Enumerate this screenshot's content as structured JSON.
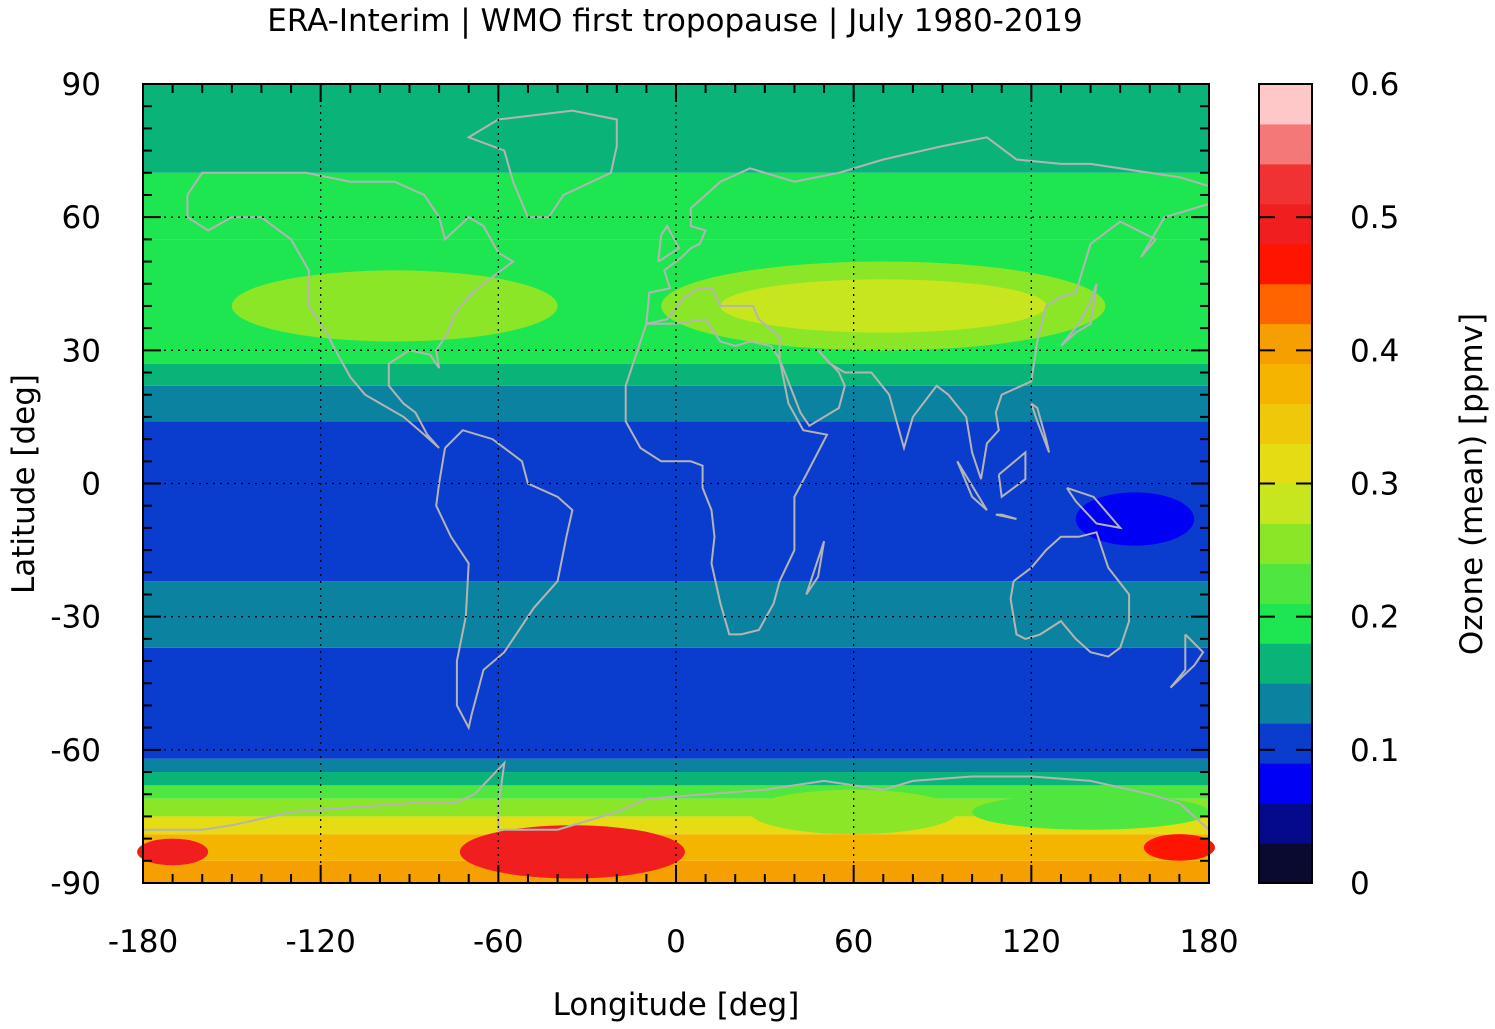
{
  "chart_data": {
    "type": "heatmap",
    "title": "ERA-Interim | WMO first tropopause | July 1980-2019",
    "xlabel": "Longitude [deg]",
    "ylabel": "Latitude [deg]",
    "xlim": [
      -180,
      180
    ],
    "ylim": [
      -90,
      90
    ],
    "x_ticks": [
      -180,
      -120,
      -60,
      0,
      60,
      120,
      180
    ],
    "y_ticks": [
      -90,
      -60,
      -30,
      0,
      30,
      60,
      90
    ],
    "x_tick_labels": [
      "-180",
      "-120",
      "-60",
      "0",
      "60",
      "120",
      "180"
    ],
    "y_tick_labels": [
      "-90",
      "-60",
      "-30",
      "0",
      "30",
      "60",
      "90"
    ],
    "grid": true,
    "colorbar": {
      "label": "Ozone (mean) [ppmv]",
      "range": [
        0,
        0.6
      ],
      "ticks": [
        0,
        0.1,
        0.2,
        0.3,
        0.4,
        0.5,
        0.6
      ],
      "tick_labels": [
        "0",
        "0.1",
        "0.2",
        "0.3",
        "0.4",
        "0.5",
        "0.6"
      ],
      "levels": [
        0,
        0.03,
        0.06,
        0.09,
        0.12,
        0.15,
        0.18,
        0.21,
        0.24,
        0.27,
        0.3,
        0.33,
        0.36,
        0.39,
        0.42,
        0.45,
        0.48,
        0.51,
        0.54,
        0.57,
        0.6
      ],
      "colors": [
        "#0a0a30",
        "#050a8c",
        "#0000f5",
        "#0a3ccd",
        "#0a82a0",
        "#0ab478",
        "#1ee650",
        "#50e640",
        "#8ce628",
        "#c8e61e",
        "#e6dc14",
        "#f0c80a",
        "#f5b400",
        "#f5a000",
        "#ff6400",
        "#ff1400",
        "#f01e1e",
        "#f03232",
        "#f57878",
        "#ffc8c8"
      ]
    },
    "bands": [
      {
        "lat_from": -90,
        "lat_to": -85,
        "value": 0.4
      },
      {
        "lat_from": -85,
        "lat_to": -79,
        "value": 0.37
      },
      {
        "lat_from": -79,
        "lat_to": -75,
        "value": 0.3
      },
      {
        "lat_from": -75,
        "lat_to": -71,
        "value": 0.26
      },
      {
        "lat_from": -71,
        "lat_to": -68,
        "value": 0.22
      },
      {
        "lat_from": -68,
        "lat_to": -65,
        "value": 0.17
      },
      {
        "lat_from": -65,
        "lat_to": -62,
        "value": 0.14
      },
      {
        "lat_from": -62,
        "lat_to": -37,
        "value": 0.11
      },
      {
        "lat_from": -37,
        "lat_to": -22,
        "value": 0.13
      },
      {
        "lat_from": -22,
        "lat_to": 14,
        "value": 0.11
      },
      {
        "lat_from": 14,
        "lat_to": 22,
        "value": 0.14
      },
      {
        "lat_from": 22,
        "lat_to": 27,
        "value": 0.17
      },
      {
        "lat_from": 27,
        "lat_to": 55,
        "value": 0.2
      },
      {
        "lat_from": 55,
        "lat_to": 70,
        "value": 0.2
      },
      {
        "lat_from": 70,
        "lat_to": 90,
        "value": 0.17
      }
    ],
    "features": [
      {
        "lon": 70,
        "lat": 40,
        "rlon": 75,
        "rlat": 10,
        "value": 0.25
      },
      {
        "lon": 70,
        "lat": 40,
        "rlon": 55,
        "rlat": 6,
        "value": 0.29
      },
      {
        "lon": -95,
        "lat": 40,
        "rlon": 55,
        "rlat": 8,
        "value": 0.25
      },
      {
        "lon": -35,
        "lat": -83,
        "rlon": 38,
        "rlat": 6,
        "value": 0.49
      },
      {
        "lon": -170,
        "lat": -83,
        "rlon": 12,
        "rlat": 3,
        "value": 0.49
      },
      {
        "lon": 170,
        "lat": -82,
        "rlon": 12,
        "rlat": 3,
        "value": 0.46
      },
      {
        "lon": 60,
        "lat": -74,
        "rlon": 35,
        "rlat": 5,
        "value": 0.24
      },
      {
        "lon": 140,
        "lat": -74,
        "rlon": 40,
        "rlat": 4,
        "value": 0.22
      },
      {
        "lon": 155,
        "lat": -8,
        "rlon": 20,
        "rlat": 6,
        "value": 0.08
      }
    ]
  }
}
